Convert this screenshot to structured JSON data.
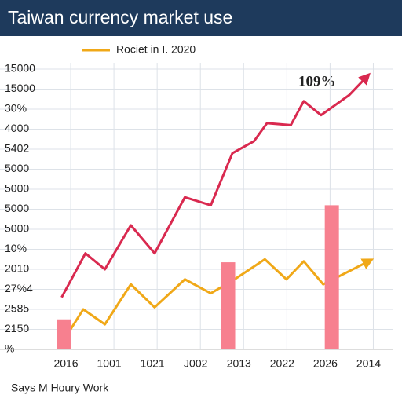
{
  "chart_data": {
    "type": "line",
    "title": "Taiwan currency market use",
    "footer": "Says M Houry Work",
    "annotation": "109%",
    "legend": "top",
    "grid": true,
    "xlim": [
      -0.4,
      7.3
    ],
    "ylim": [
      0,
      14
    ],
    "xticks": [
      {
        "value": 0,
        "label": "2016"
      },
      {
        "value": 1,
        "label": "1001"
      },
      {
        "value": 2,
        "label": "1021"
      },
      {
        "value": 3,
        "label": "J002"
      },
      {
        "value": 4,
        "label": "2013"
      },
      {
        "value": 5,
        "label": "2022"
      },
      {
        "value": 6,
        "label": "2026"
      },
      {
        "value": 7,
        "label": "2014"
      }
    ],
    "yticks": [
      {
        "value": 0,
        "label": "%"
      },
      {
        "value": 1,
        "label": "2150"
      },
      {
        "value": 2,
        "label": "2585"
      },
      {
        "value": 3,
        "label": "27%4"
      },
      {
        "value": 4,
        "label": "2010"
      },
      {
        "value": 5,
        "label": "10%"
      },
      {
        "value": 6,
        "label": "5000"
      },
      {
        "value": 7,
        "label": "5000"
      },
      {
        "value": 8,
        "label": "5000"
      },
      {
        "value": 9,
        "label": "5000"
      },
      {
        "value": 10,
        "label": "5402"
      },
      {
        "value": 11,
        "label": "4000"
      },
      {
        "value": 12,
        "label": "30%"
      },
      {
        "value": 13,
        "label": "15000"
      },
      {
        "value": 14,
        "label": "15000"
      }
    ],
    "series": [
      {
        "type": "line",
        "color": "#d9294f",
        "x": [
          -0.1,
          0.45,
          0.9,
          1.5,
          2.05,
          2.75,
          3.35,
          3.85,
          4.35,
          4.65,
          5.2,
          5.5,
          5.9,
          6.55,
          6.95
        ],
        "values": [
          2.6,
          4.8,
          4.0,
          6.2,
          4.8,
          7.6,
          7.2,
          9.8,
          10.4,
          11.3,
          11.2,
          12.4,
          11.7,
          12.7,
          13.6
        ]
      },
      {
        "type": "line",
        "name": "Rociet in I. 2020",
        "color": "#f0a818",
        "x": [
          -0.1,
          0.4,
          0.9,
          1.5,
          2.05,
          2.75,
          3.35,
          3.9,
          4.6,
          5.1,
          5.5,
          5.95,
          7.0
        ],
        "values": [
          0.3,
          2.0,
          1.25,
          3.25,
          2.1,
          3.5,
          2.8,
          3.5,
          4.5,
          3.5,
          4.4,
          3.25,
          4.4
        ]
      },
      {
        "type": "bar",
        "color": "#f7808f",
        "x": [
          -0.05,
          3.75,
          6.15
        ],
        "values": [
          1.5,
          4.35,
          7.2
        ]
      }
    ]
  }
}
